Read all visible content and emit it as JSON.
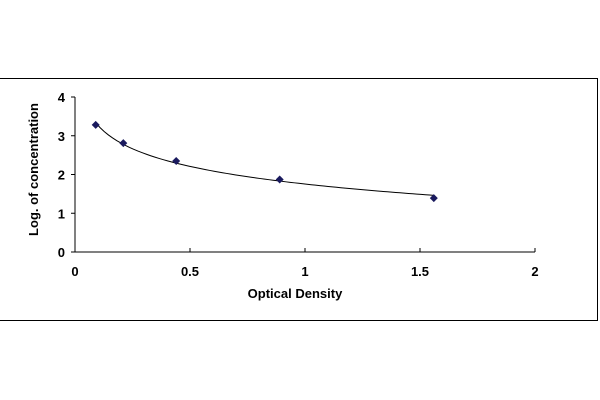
{
  "chart_data": {
    "type": "scatter",
    "xlabel": "Optical Density",
    "ylabel": "Log. of concentration",
    "xlim": [
      0,
      2
    ],
    "ylim": [
      0,
      4
    ],
    "x_ticks": [
      "0",
      "0.5",
      "1",
      "1.5",
      "2"
    ],
    "y_ticks": [
      "0",
      "1",
      "2",
      "3",
      "4"
    ],
    "grid": false,
    "series": [
      {
        "x": [
          0.09,
          0.21,
          0.44,
          0.89,
          1.56
        ],
        "y": [
          3.28,
          2.81,
          2.35,
          1.87,
          1.39
        ],
        "marker": "diamond",
        "color": "#1a1a5e",
        "fit_line": true
      }
    ]
  }
}
